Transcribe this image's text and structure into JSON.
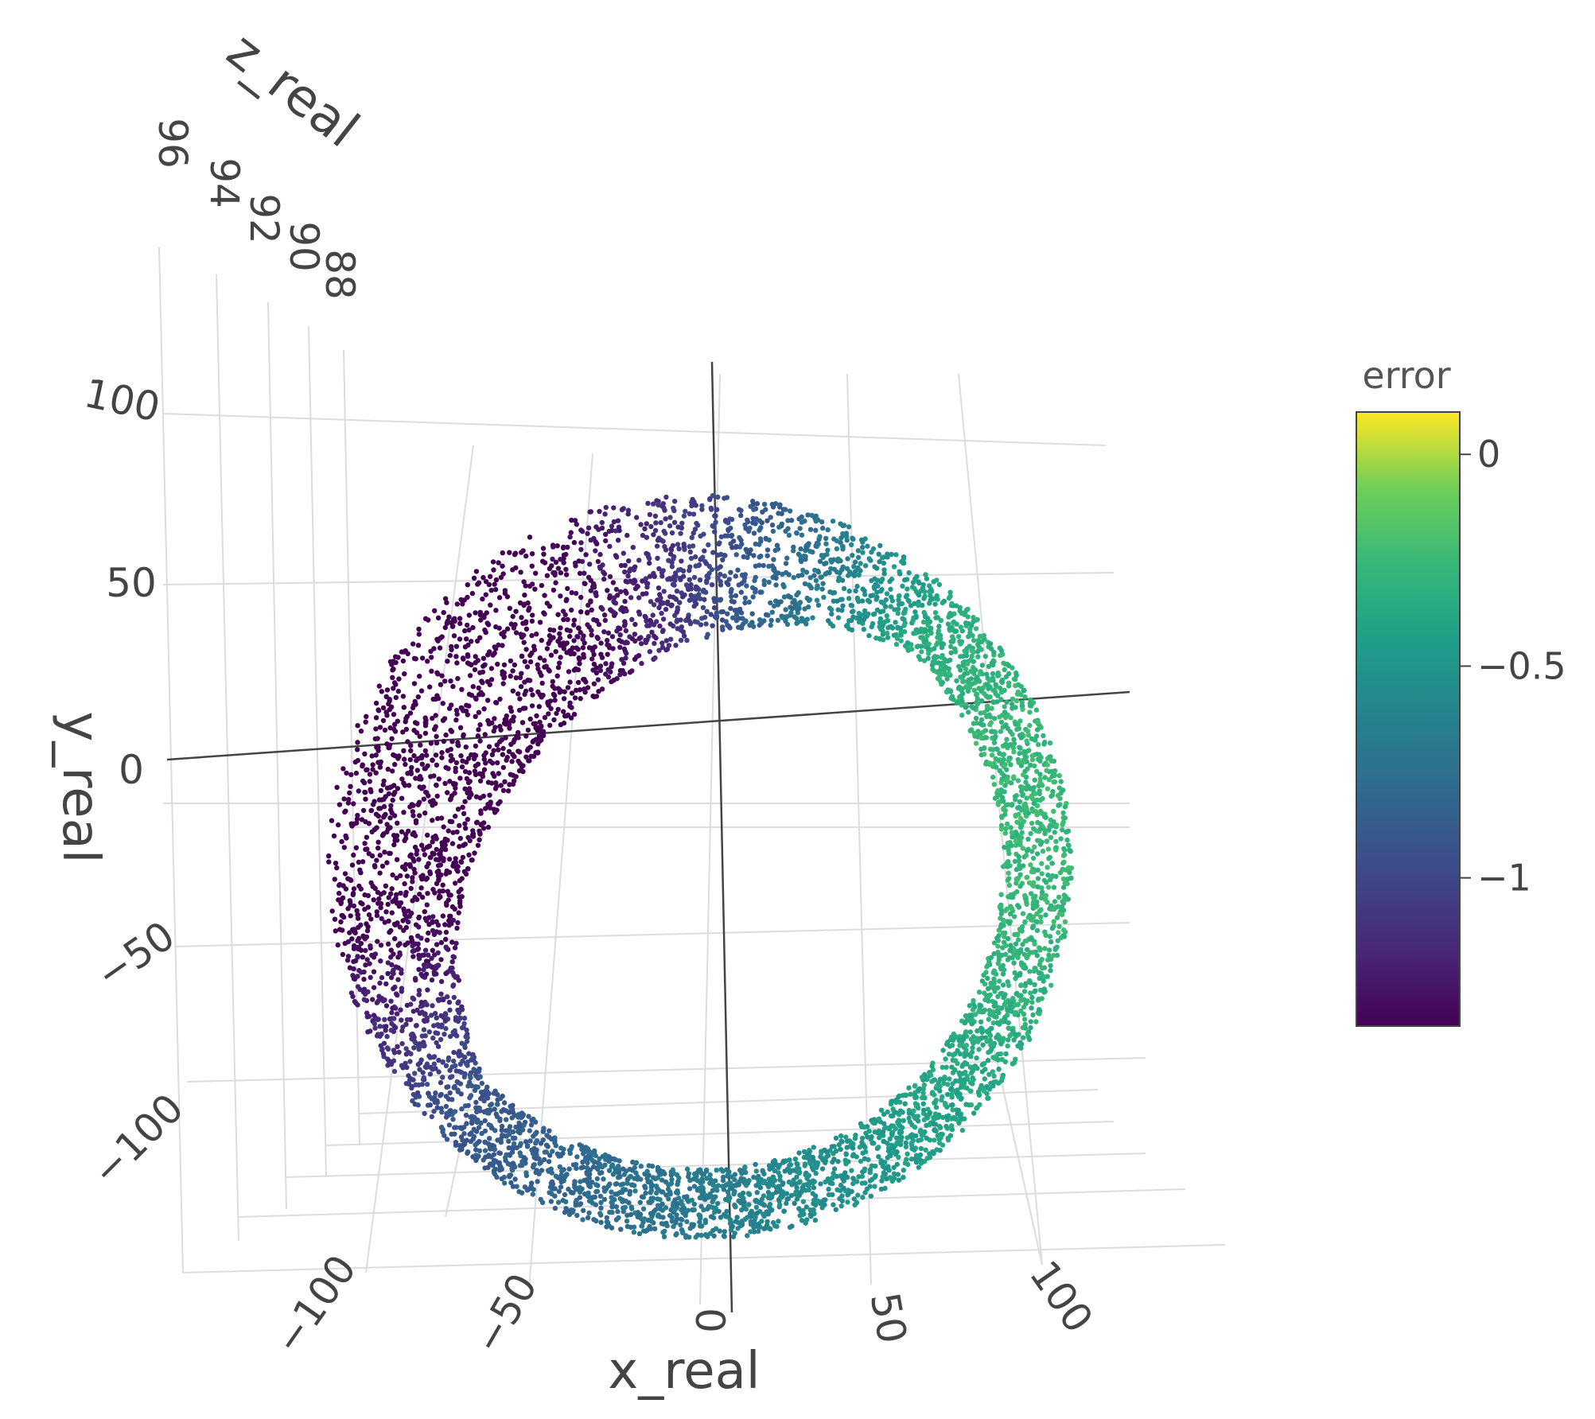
{
  "chart_data": {
    "type": "scatter3d",
    "title": "",
    "x_axis": {
      "label": "x_real",
      "ticks": [
        "−100",
        "−50",
        "0",
        "50",
        "100"
      ],
      "range": [
        -120,
        120
      ]
    },
    "y_axis": {
      "label": "y_real",
      "ticks": [
        "−100",
        "−50",
        "0",
        "50",
        "100"
      ],
      "range": [
        -120,
        120
      ]
    },
    "z_axis": {
      "label": "z_real",
      "ticks": [
        "96",
        "94",
        "92",
        "90",
        "88"
      ],
      "range": [
        88,
        96
      ]
    },
    "series": [
      {
        "shape": "ring",
        "center_x": 0,
        "center_y": 0,
        "inner_radius": 100,
        "outer_radius": 123,
        "point_count": 6000,
        "color_variable": "error",
        "note_color_by_angle": "error lowest (about -1.35) at lower-left, highest (about 0.1) at right"
      }
    ],
    "colorbar": {
      "title": "error",
      "colorscale": "Viridis",
      "range": [
        -1.35,
        0.1
      ],
      "ticks": [
        "0",
        "−0.5",
        "−1"
      ],
      "tick_values": [
        0,
        -0.5,
        -1
      ]
    },
    "grid": true,
    "legend": "right"
  }
}
